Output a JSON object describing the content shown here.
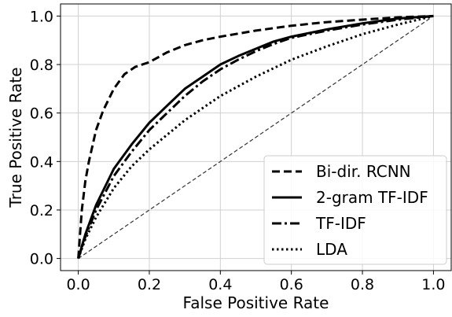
{
  "chart_data": {
    "type": "line",
    "xlabel": "False Positive Rate",
    "ylabel": "True Positive Rate",
    "xlim": [
      -0.05,
      1.05
    ],
    "ylim": [
      -0.05,
      1.05
    ],
    "xticks": [
      0.0,
      0.2,
      0.4,
      0.6,
      0.8,
      1.0
    ],
    "yticks": [
      0.0,
      0.2,
      0.4,
      0.6,
      0.8,
      1.0
    ],
    "xtick_labels": [
      "0.0",
      "0.2",
      "0.4",
      "0.6",
      "0.8",
      "1.0"
    ],
    "ytick_labels": [
      "0.0",
      "0.2",
      "0.4",
      "0.6",
      "0.8",
      "1.0"
    ],
    "grid": true,
    "legend_position": "lower-right",
    "series": [
      {
        "name": "Bi-dir. RCNN",
        "style": "dashed",
        "color": "#000000",
        "x": [
          0.0,
          0.005,
          0.01,
          0.02,
          0.03,
          0.05,
          0.07,
          0.1,
          0.13,
          0.16,
          0.2,
          0.25,
          0.3,
          0.35,
          0.4,
          0.5,
          0.6,
          0.7,
          0.8,
          0.9,
          1.0
        ],
        "y": [
          0.0,
          0.1,
          0.2,
          0.32,
          0.4,
          0.53,
          0.61,
          0.7,
          0.76,
          0.79,
          0.81,
          0.85,
          0.88,
          0.9,
          0.915,
          0.94,
          0.96,
          0.975,
          0.985,
          0.995,
          1.0
        ]
      },
      {
        "name": "2-gram TF-IDF",
        "style": "solid",
        "color": "#000000",
        "x": [
          0.0,
          0.02,
          0.05,
          0.1,
          0.15,
          0.2,
          0.25,
          0.3,
          0.35,
          0.4,
          0.45,
          0.5,
          0.55,
          0.6,
          0.7,
          0.8,
          0.9,
          1.0
        ],
        "y": [
          0.0,
          0.1,
          0.22,
          0.37,
          0.47,
          0.56,
          0.63,
          0.7,
          0.75,
          0.8,
          0.835,
          0.865,
          0.895,
          0.915,
          0.945,
          0.97,
          0.99,
          1.0
        ]
      },
      {
        "name": "TF-IDF",
        "style": "dash-dot",
        "color": "#000000",
        "x": [
          0.0,
          0.02,
          0.05,
          0.1,
          0.15,
          0.2,
          0.25,
          0.3,
          0.35,
          0.4,
          0.45,
          0.5,
          0.55,
          0.6,
          0.7,
          0.8,
          0.9,
          1.0
        ],
        "y": [
          0.0,
          0.09,
          0.2,
          0.34,
          0.44,
          0.53,
          0.6,
          0.67,
          0.73,
          0.78,
          0.82,
          0.855,
          0.885,
          0.91,
          0.94,
          0.965,
          0.985,
          1.0
        ]
      },
      {
        "name": "LDA",
        "style": "dotted",
        "color": "#000000",
        "x": [
          0.0,
          0.02,
          0.05,
          0.1,
          0.15,
          0.2,
          0.25,
          0.3,
          0.35,
          0.4,
          0.45,
          0.5,
          0.55,
          0.6,
          0.7,
          0.8,
          0.9,
          1.0
        ],
        "y": [
          0.0,
          0.08,
          0.17,
          0.29,
          0.38,
          0.45,
          0.51,
          0.57,
          0.62,
          0.67,
          0.71,
          0.75,
          0.785,
          0.82,
          0.875,
          0.925,
          0.965,
          1.0
        ]
      }
    ],
    "reference_line": {
      "style": "thin-dashed",
      "color": "#333333",
      "x": [
        0.0,
        1.0
      ],
      "y": [
        0.0,
        1.0
      ]
    }
  }
}
